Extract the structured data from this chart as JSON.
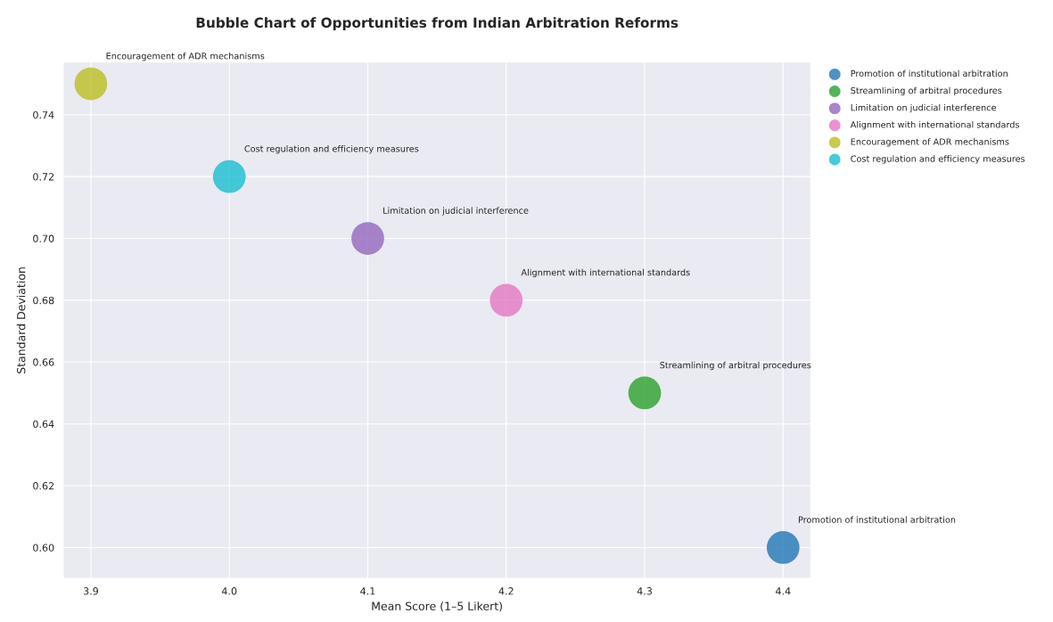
{
  "chart_data": {
    "type": "bubble",
    "title": "Bubble Chart of Opportunities from Indian Arbitration Reforms",
    "xlabel": "Mean Score (1–5 Likert)",
    "ylabel": "Standard Deviation",
    "xlim": [
      3.88,
      4.42
    ],
    "ylim": [
      0.59,
      0.757
    ],
    "xticks": [
      3.9,
      {
        "value": 4.0,
        "label": "4.0"
      },
      4.1,
      4.2,
      4.3,
      4.4
    ],
    "yticks": [
      {
        "value": 0.6,
        "label": "0.60"
      },
      0.62,
      0.64,
      0.66,
      0.68,
      {
        "value": 0.7,
        "label": "0.70"
      },
      0.72,
      0.74
    ],
    "grid": true,
    "legend": "top right",
    "marker": "circle",
    "series": [
      {
        "name": "Promotion of institutional arbitration",
        "color": "#1f77b4",
        "x": [
          4.4
        ],
        "values": [
          0.6
        ],
        "sizes": [
          1
        ]
      },
      {
        "name": "Streamlining of arbitral procedures",
        "color": "#2ca02c",
        "x": [
          4.3
        ],
        "values": [
          0.65
        ],
        "sizes": [
          1
        ]
      },
      {
        "name": "Limitation on judicial interference",
        "color": "#9467bd",
        "x": [
          4.1
        ],
        "values": [
          0.7
        ],
        "sizes": [
          1
        ]
      },
      {
        "name": "Alignment with international standards",
        "color": "#e377c2",
        "x": [
          4.2
        ],
        "values": [
          0.68
        ],
        "sizes": [
          1
        ]
      },
      {
        "name": "Encouragement of ADR mechanisms",
        "color": "#bcbd22",
        "x": [
          3.9
        ],
        "values": [
          0.75
        ],
        "sizes": [
          1
        ]
      },
      {
        "name": "Cost regulation and efficiency measures",
        "color": "#17becf",
        "x": [
          4.0
        ],
        "values": [
          0.72
        ],
        "sizes": [
          1
        ]
      }
    ],
    "annotations": [
      "Promotion of institutional arbitration",
      "Streamlining of arbitral procedures",
      "Limitation on judicial interference",
      "Alignment with international standards",
      "Encouragement of ADR mechanisms",
      "Cost regulation and efficiency measures"
    ]
  }
}
